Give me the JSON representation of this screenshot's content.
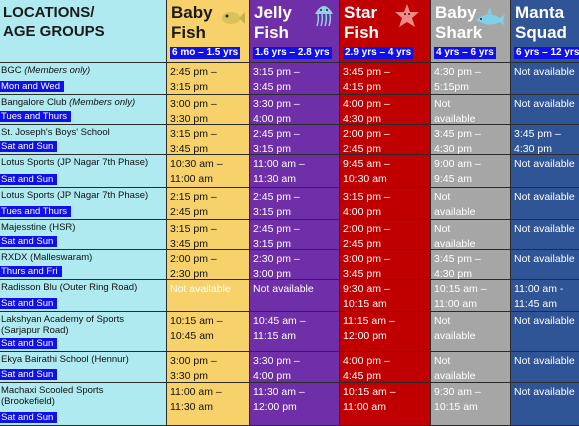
{
  "header": {
    "locations_title": "LOCATIONS/\nAGE GROUPS",
    "programs": [
      {
        "name": "Baby\nFish",
        "ages": "6 mo – 1.5 yrs",
        "icon": "fish-icon"
      },
      {
        "name": "Jelly\nFish",
        "ages": "1.6 yrs – 2.8 yrs",
        "icon": "jellyfish-icon"
      },
      {
        "name": "Star\nFish",
        "ages": "2.9 yrs – 4 yrs",
        "icon": "starfish-icon"
      },
      {
        "name": "Baby\nShark",
        "ages": "4 yrs – 6 yrs",
        "icon": "shark-icon"
      },
      {
        "name": "Manta\nSquad",
        "ages": "6 yrs – 12 yrs",
        "icon": ""
      }
    ]
  },
  "rows": [
    {
      "location": "BGC",
      "note": "(Members only)",
      "days": "Mon and Wed",
      "times": [
        "2:45 pm –\n3:15 pm",
        "3:15 pm –\n3:45 pm",
        "3:45 pm –\n4:15 pm",
        "4:30 pm –\n5:15pm",
        "Not available"
      ]
    },
    {
      "location": "Bangalore Club",
      "note": "(Members only)",
      "days": "Tues and Thurs",
      "times": [
        "3:00 pm –\n3:30 pm",
        "3:30 pm –\n4:00 pm",
        "4:00 pm –\n4:30 pm",
        "Not\navailable",
        "Not available"
      ]
    },
    {
      "location": "St. Joseph's Boys' School",
      "note": "",
      "days": "Sat and Sun",
      "times": [
        "3:15 pm –\n3:45 pm",
        "2:45 pm –\n3:15 pm",
        "2:00 pm –\n2:45 pm",
        "3:45 pm –\n4:30 pm",
        "3:45 pm –\n4:30 pm"
      ]
    },
    {
      "location": "Lotus Sports (JP Nagar 7th Phase)",
      "note": "",
      "days": "Sat and Sun",
      "times": [
        "10:30 am –\n11:00 am",
        "11:00 am –\n11:30 am",
        "9:45 am –\n10:30 am",
        "9:00 am –\n9:45 am",
        "Not available"
      ]
    },
    {
      "location": "Lotus Sports (JP Nagar 7th Phase)",
      "note": "",
      "days": "Tues and Thurs",
      "times": [
        "2:15 pm –\n2:45 pm",
        "2:45 pm –\n3:15 pm",
        "3:15 pm –\n4:00 pm",
        "Not\navailable",
        "Not available"
      ]
    },
    {
      "location": "Majesstine (HSR)",
      "note": "",
      "days": "Sat and Sun",
      "times": [
        "3:15 pm –\n3:45 pm",
        "2:45 pm –\n3:15 pm",
        "2:00 pm –\n2:45 pm",
        "Not\navailable",
        "Not available"
      ]
    },
    {
      "location": "RXDX (Malleswaram)",
      "note": "",
      "days": "Thurs and Fri",
      "times": [
        "2:00 pm –\n2:30 pm",
        "2:30 pm –\n3:00 pm",
        "3:00 pm –\n3:45 pm",
        "3:45 pm –\n4:30 pm",
        "Not available"
      ]
    },
    {
      "location": "Radisson Blu (Outer Ring Road)",
      "note": "",
      "days": "Sat and Sun",
      "times": [
        "Not available",
        "Not available",
        "9:30 am –\n10:15 am",
        "10:15 am –\n11:00 am",
        "11:00 am -\n11:45 am"
      ]
    },
    {
      "location": "Lakshyan Academy of Sports\n(Sarjapur Road)",
      "note": "",
      "days": "Sat and Sun",
      "times": [
        "10:15 am –\n10:45 am",
        "10:45 am –\n11:15 am",
        "11:15 am –\n12:00 pm",
        "Not\navailable",
        "Not available"
      ]
    },
    {
      "location": "Ekya Bairathi School (Hennur)",
      "note": "",
      "days": "Sat and Sun",
      "times": [
        "3:00 pm –\n3:30 pm",
        "3:30 pm –\n4:00 pm",
        "4:00 pm –\n4:45 pm",
        "Not\navailable",
        "Not available"
      ]
    },
    {
      "location": "Machaxi Scooled Sports\n(Brookefield)",
      "note": "",
      "days": "Sat and Sun",
      "times": [
        "11:00 am –\n11:30 am",
        "11:30 am –\n12:00 pm",
        "10:15 am –\n11:00 am",
        "9:30 am –\n10:15 am",
        "Not available"
      ]
    }
  ],
  "colors": {
    "locations_bg": "#aeeaf0",
    "baby_fish": "#f7d26a",
    "jelly_fish": "#6e2fa8",
    "star_fish": "#c00000",
    "baby_shark": "#a6a6a6",
    "manta_squad": "#2f5597",
    "tag_blue": "#1010e8"
  }
}
